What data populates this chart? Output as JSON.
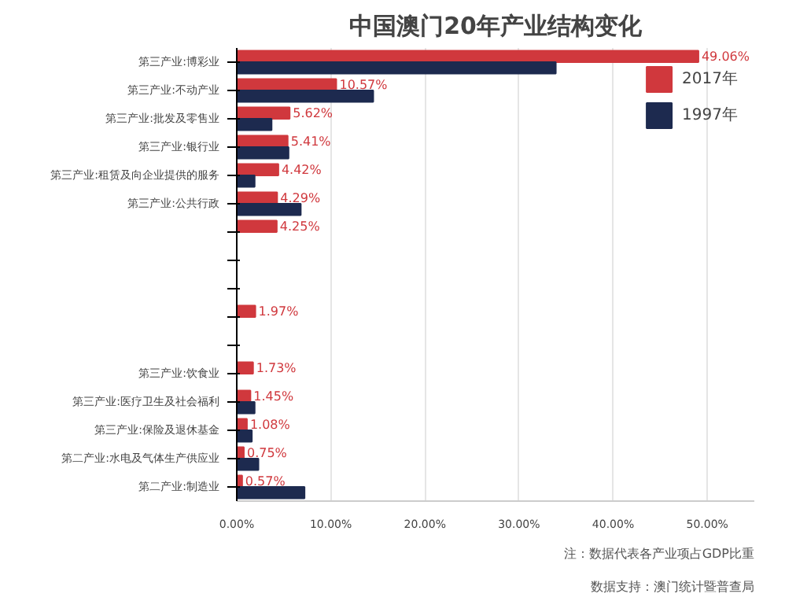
{
  "chart_data": {
    "type": "bar",
    "orientation": "horizontal",
    "title": "中国澳门20年产业结构变化",
    "categories": [
      "第三产业:博彩业",
      "第三产业:不动产业",
      "第三产业:批发及零售业",
      "第三产业:银行业",
      "第三产业:租赁及向企业提供的服务",
      "第三产业:公共行政",
      null,
      null,
      null,
      null,
      null,
      "第三产业:饮食业",
      "第三产业:医疗卫生及社会福利",
      "第三产业:保险及退休基金",
      "第二产业:水电及气体生产供应业",
      "第二产业:制造业"
    ],
    "series": [
      {
        "name": "2017年",
        "color": "#d0383d",
        "values": [
          49.06,
          10.57,
          5.62,
          5.41,
          4.42,
          4.29,
          4.25,
          null,
          null,
          1.97,
          null,
          1.73,
          1.45,
          1.08,
          0.75,
          0.57
        ],
        "value_labels": [
          "49.06%",
          "10.57%",
          "5.62%",
          "5.41%",
          "4.42%",
          "4.29%",
          "4.25%",
          null,
          null,
          "1.97%",
          null,
          "1.73%",
          "1.45%",
          "1.08%",
          "0.75%",
          "0.57%"
        ]
      },
      {
        "name": "1997年",
        "color": "#1d2a4f",
        "values": [
          33.9,
          14.5,
          3.7,
          5.5,
          1.9,
          6.8,
          null,
          null,
          null,
          null,
          null,
          null,
          1.9,
          1.6,
          2.3,
          7.2
        ]
      }
    ],
    "xlim": [
      0,
      55
    ],
    "xticks": [
      {
        "value": 0,
        "label": "0.00%"
      },
      {
        "value": 10,
        "label": "10.00%"
      },
      {
        "value": 20,
        "label": "20.00%"
      },
      {
        "value": 30,
        "label": "30.00%"
      },
      {
        "value": 40,
        "label": "40.00%"
      },
      {
        "value": 50,
        "label": "50.00%"
      }
    ],
    "grid": "x",
    "legend": "top right",
    "annotations": [
      "注：数据代表各产业项占GDP比重",
      "数据支持：澳门统计暨普查局"
    ]
  }
}
